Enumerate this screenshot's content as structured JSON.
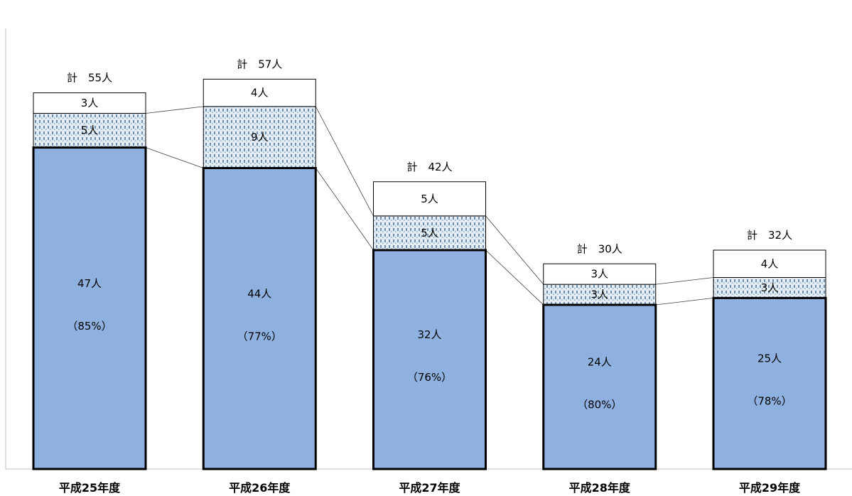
{
  "chart_data": {
    "type": "bar",
    "stacked": true,
    "categories": [
      "平成25年度",
      "平成26年度",
      "平成27年度",
      "平成28年度",
      "平成29年度"
    ],
    "totals": [
      55,
      57,
      42,
      30,
      32
    ],
    "total_labels": [
      "計　55人",
      "計　57人",
      "計　42人",
      "計　30人",
      "計　32人"
    ],
    "series": [
      {
        "values": [
          47,
          44,
          32,
          24,
          25
        ],
        "labels": [
          "47人",
          "44人",
          "32人",
          "24人",
          "25人"
        ],
        "percent_labels": [
          "（85%）",
          "（77%）",
          "（76%）",
          "（80%）",
          "（78%）"
        ],
        "color": "#8EB1E0"
      },
      {
        "values": [
          5,
          9,
          5,
          3,
          3
        ],
        "labels": [
          "5人",
          "9人",
          "5人",
          "3人",
          "3人"
        ],
        "color": "#C9D7E6",
        "pattern": "dotted"
      },
      {
        "values": [
          3,
          4,
          5,
          3,
          4
        ],
        "labels": [
          "3人",
          "4人",
          "5人",
          "3人",
          "4人"
        ],
        "color": "#FFFFFF"
      }
    ],
    "connector_lines": true,
    "grid": false,
    "legend": "none"
  }
}
